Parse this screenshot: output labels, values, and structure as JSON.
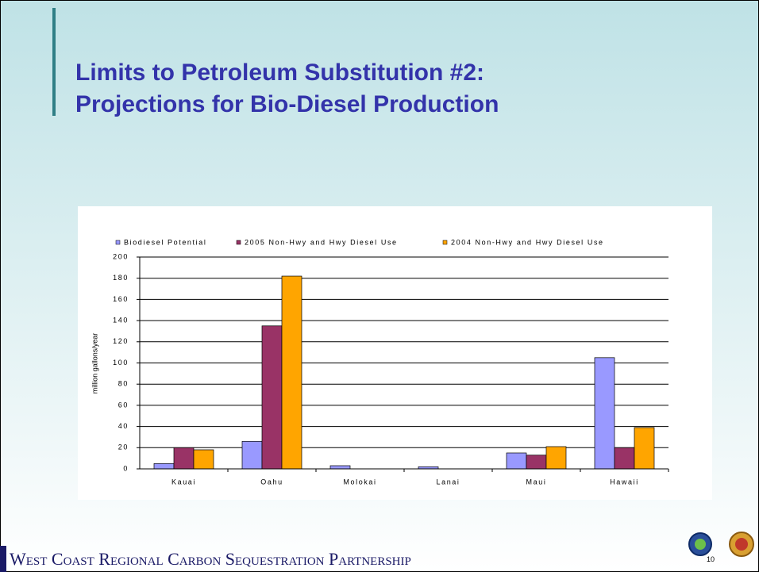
{
  "slide": {
    "title_lines": [
      "Limits to Petroleum Substitution #2:",
      "Projections for Bio-Diesel Production"
    ],
    "footer": "West Coast Regional Carbon Sequestration Partnership",
    "page_number": "10"
  },
  "chart_data": {
    "type": "bar",
    "ylabel": "million gallons/year",
    "categories": [
      "Kauai",
      "Oahu",
      "Molokai",
      "Lanai",
      "Maui",
      "Hawaii"
    ],
    "series": [
      {
        "name": "Biodiesel Potential",
        "color": "#9999ff",
        "values": [
          5,
          26,
          3,
          2,
          15,
          105
        ]
      },
      {
        "name": "2005 Non-Hwy and Hwy Diesel Use",
        "color": "#993366",
        "values": [
          20,
          135,
          0,
          0,
          13,
          20
        ]
      },
      {
        "name": "2004 Non-Hwy and Hwy Diesel Use",
        "color": "#ffa500",
        "values": [
          18,
          182,
          0,
          0,
          21,
          39
        ]
      }
    ],
    "ylim": [
      0,
      200
    ],
    "yticks": [
      0,
      20,
      40,
      60,
      80,
      100,
      120,
      140,
      160,
      180,
      200
    ],
    "grid": true,
    "legend": "top"
  }
}
